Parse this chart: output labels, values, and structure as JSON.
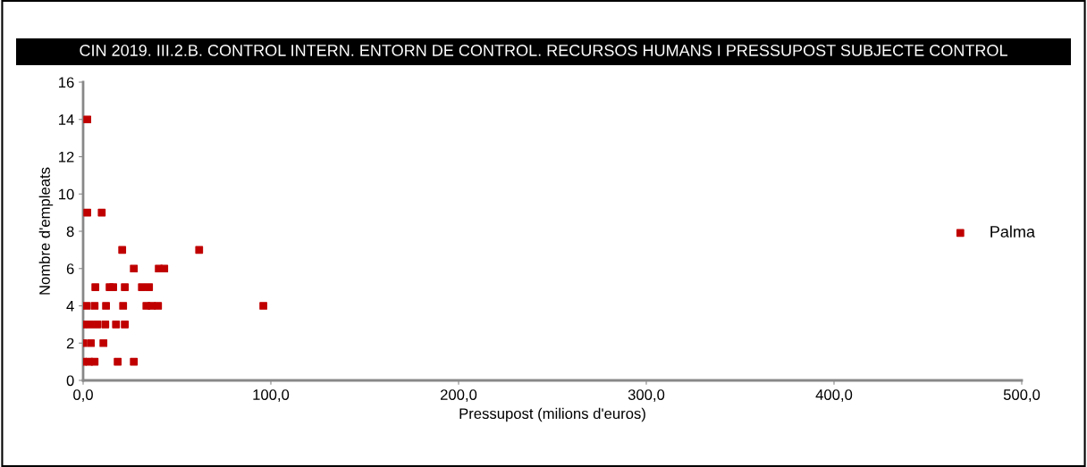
{
  "chart_data": {
    "type": "scatter",
    "title": "CIN 2019. III.2.B. CONTROL INTERN. ENTORN DE CONTROL. RECURSOS HUMANS I PRESSUPOST SUBJECTE CONTROL",
    "xlabel": "Pressupost (milions d'euros)",
    "ylabel": "Nombre d'empleats",
    "series": [
      {
        "name": "Palma",
        "color": "#c00000",
        "x": [
          2.2,
          2.2,
          9.9,
          20.8,
          61.8,
          27,
          40.3,
          43.2,
          6.5,
          14.1,
          16.0,
          22.2,
          31.3,
          35.1,
          1.8,
          6.1,
          12.2,
          21.3,
          33.7,
          36.5,
          39.9,
          96,
          0,
          3.7,
          7.5,
          11.8,
          17.5,
          22.2,
          0,
          4.1,
          10.8,
          0,
          3.2,
          6.1,
          18.4,
          27
        ],
        "values": [
          14,
          9,
          9,
          7,
          7,
          6,
          6,
          6,
          5,
          5,
          5,
          5,
          5,
          5,
          4,
          4,
          4,
          4,
          4,
          4,
          4,
          4,
          3,
          3,
          3,
          3,
          3,
          3,
          2,
          2,
          2,
          1,
          1,
          1,
          1,
          1
        ]
      }
    ],
    "xlim": [
      0,
      500
    ],
    "xticks": [
      {
        "value": 0,
        "label": "0,0"
      },
      {
        "value": 100,
        "label": "100,0"
      },
      {
        "value": 200,
        "label": "200,0"
      },
      {
        "value": 300,
        "label": "300,0"
      },
      {
        "value": 400,
        "label": "400,0"
      },
      {
        "value": 500,
        "label": "500,0"
      }
    ],
    "ylim": [
      0,
      16
    ],
    "yticks": [
      0,
      2,
      4,
      6,
      8,
      10,
      12,
      14,
      16
    ],
    "marker": "square",
    "legend": "right",
    "grid": false
  }
}
